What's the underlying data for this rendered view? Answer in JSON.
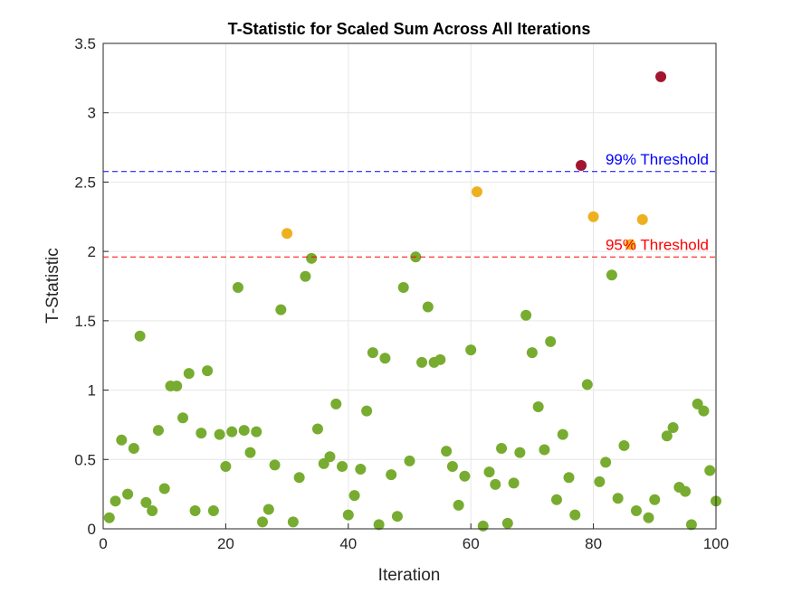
{
  "chart_data": {
    "type": "scatter",
    "title": "T-Statistic for Scaled Sum Across All Iterations",
    "xlabel": "Iteration",
    "ylabel": "T-Statistic",
    "xlim": [
      0,
      100
    ],
    "ylim": [
      0,
      3.5
    ],
    "xticks": [
      "0",
      "20",
      "40",
      "60",
      "80",
      "100"
    ],
    "yticks": [
      "0",
      "0.5",
      "1",
      "1.5",
      "2",
      "2.5",
      "3",
      "3.5"
    ],
    "grid": true,
    "colors": {
      "below95": "#77ac30",
      "above95": "#edb120",
      "above99": "#a2142f",
      "thr95": "#ff0000",
      "thr99": "#0000ff"
    },
    "thresholds": [
      {
        "label": "95% Threshold",
        "value": 1.96,
        "color": "#ff0000"
      },
      {
        "label": "99% Threshold",
        "value": 2.576,
        "color": "#0000ff"
      }
    ],
    "points": [
      [
        1,
        0.08
      ],
      [
        2,
        0.2
      ],
      [
        3,
        0.64
      ],
      [
        4,
        0.25
      ],
      [
        5,
        0.58
      ],
      [
        6,
        1.39
      ],
      [
        7,
        0.19
      ],
      [
        8,
        0.13
      ],
      [
        9,
        0.71
      ],
      [
        10,
        0.29
      ],
      [
        11,
        1.03
      ],
      [
        12,
        1.03
      ],
      [
        13,
        0.8
      ],
      [
        14,
        1.12
      ],
      [
        15,
        0.13
      ],
      [
        16,
        0.69
      ],
      [
        17,
        1.14
      ],
      [
        18,
        0.13
      ],
      [
        19,
        0.68
      ],
      [
        20,
        0.45
      ],
      [
        21,
        0.7
      ],
      [
        22,
        1.74
      ],
      [
        23,
        0.71
      ],
      [
        24,
        0.55
      ],
      [
        25,
        0.7
      ],
      [
        26,
        0.05
      ],
      [
        27,
        0.14
      ],
      [
        28,
        0.46
      ],
      [
        29,
        1.58
      ],
      [
        30,
        2.13
      ],
      [
        31,
        0.05
      ],
      [
        32,
        0.37
      ],
      [
        33,
        1.82
      ],
      [
        34,
        1.95
      ],
      [
        35,
        0.72
      ],
      [
        36,
        0.47
      ],
      [
        37,
        0.52
      ],
      [
        38,
        0.9
      ],
      [
        39,
        0.45
      ],
      [
        40,
        0.1
      ],
      [
        41,
        0.24
      ],
      [
        42,
        0.43
      ],
      [
        43,
        0.85
      ],
      [
        44,
        1.27
      ],
      [
        45,
        0.03
      ],
      [
        46,
        1.23
      ],
      [
        47,
        0.39
      ],
      [
        48,
        0.09
      ],
      [
        49,
        1.74
      ],
      [
        50,
        0.49
      ],
      [
        51,
        1.96
      ],
      [
        52,
        1.2
      ],
      [
        53,
        1.6
      ],
      [
        54,
        1.2
      ],
      [
        55,
        1.22
      ],
      [
        56,
        0.56
      ],
      [
        57,
        0.45
      ],
      [
        58,
        0.17
      ],
      [
        59,
        0.38
      ],
      [
        60,
        1.29
      ],
      [
        61,
        2.43
      ],
      [
        62,
        0.02
      ],
      [
        63,
        0.41
      ],
      [
        64,
        0.32
      ],
      [
        65,
        0.58
      ],
      [
        66,
        0.04
      ],
      [
        67,
        0.33
      ],
      [
        68,
        0.55
      ],
      [
        69,
        1.54
      ],
      [
        70,
        1.27
      ],
      [
        71,
        0.88
      ],
      [
        72,
        0.57
      ],
      [
        73,
        1.35
      ],
      [
        74,
        0.21
      ],
      [
        75,
        0.68
      ],
      [
        76,
        0.37
      ],
      [
        77,
        0.1
      ],
      [
        78,
        2.62
      ],
      [
        79,
        1.04
      ],
      [
        80,
        2.25
      ],
      [
        81,
        0.34
      ],
      [
        82,
        0.48
      ],
      [
        83,
        1.83
      ],
      [
        84,
        0.22
      ],
      [
        85,
        0.6
      ],
      [
        86,
        2.05
      ],
      [
        87,
        0.13
      ],
      [
        88,
        2.23
      ],
      [
        89,
        0.08
      ],
      [
        90,
        0.21
      ],
      [
        91,
        3.26
      ],
      [
        92,
        0.67
      ],
      [
        93,
        0.73
      ],
      [
        94,
        0.3
      ],
      [
        95,
        0.27
      ],
      [
        96,
        0.03
      ],
      [
        97,
        0.9
      ],
      [
        98,
        0.85
      ],
      [
        99,
        0.42
      ],
      [
        100,
        0.2
      ]
    ]
  }
}
